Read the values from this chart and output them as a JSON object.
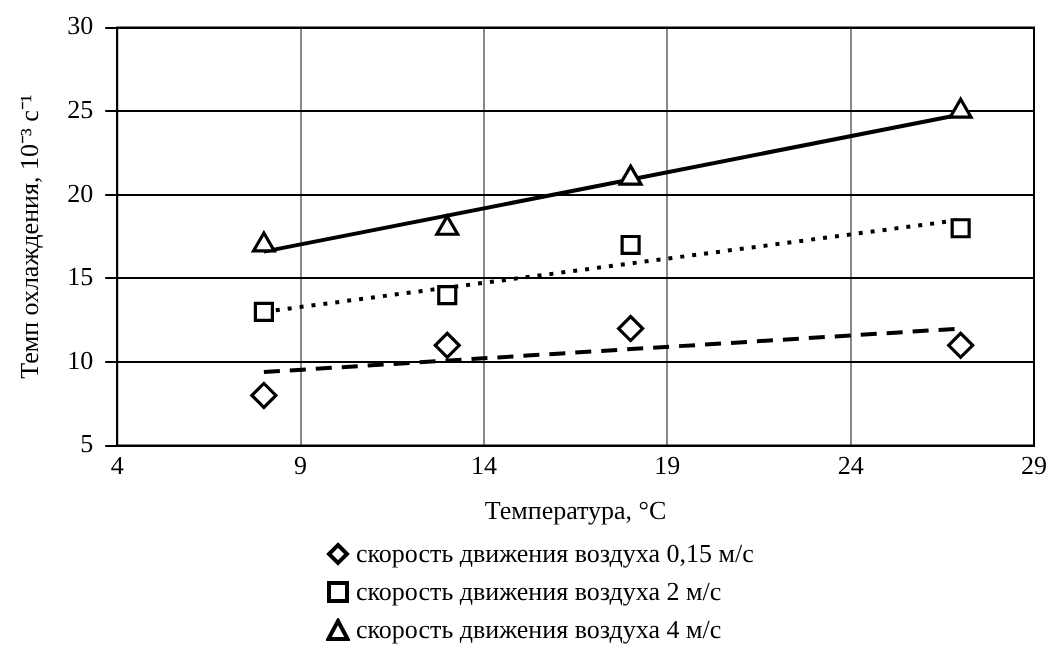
{
  "chart_data": {
    "type": "scatter",
    "xlabel": "Температура, °C",
    "ylabel": "Темп охлаждения, 10⁻³ с⁻¹",
    "xlim": [
      4,
      29
    ],
    "xticks": [
      4,
      9,
      14,
      19,
      24,
      29
    ],
    "ylim": [
      5,
      30
    ],
    "yticks": [
      5,
      10,
      15,
      20,
      25,
      30
    ],
    "grid": true,
    "legend": "bottom",
    "series": [
      {
        "name": "скорость движения воздуха 0,15 м/с",
        "color": "#000000",
        "marker": "diamond",
        "x": [
          8,
          13,
          18,
          27
        ],
        "values": [
          8,
          11,
          12,
          11
        ]
      },
      {
        "name": "скорость движения воздуха 2 м/с",
        "color": "#000000",
        "marker": "square",
        "x": [
          8,
          13,
          18,
          27
        ],
        "values": [
          13,
          14,
          17,
          18
        ]
      },
      {
        "name": "скорость движения воздуха 4 м/с",
        "color": "#000000",
        "marker": "triangle",
        "x": [
          8,
          13,
          18,
          27
        ],
        "values": [
          17,
          18,
          21,
          25
        ]
      },
      {
        "type": "line",
        "color": "#000000",
        "marker": "none",
        "line_style": "dashed",
        "x": [
          8,
          27
        ],
        "values": [
          9.4,
          12
        ]
      },
      {
        "type": "line",
        "color": "#000000",
        "marker": "none",
        "line_style": "dotted",
        "x": [
          8,
          27
        ],
        "values": [
          13,
          18.5
        ]
      },
      {
        "type": "line",
        "color": "#000000",
        "marker": "none",
        "line_style": "solid",
        "x": [
          8,
          27
        ],
        "values": [
          16.6,
          24.8
        ]
      }
    ]
  }
}
